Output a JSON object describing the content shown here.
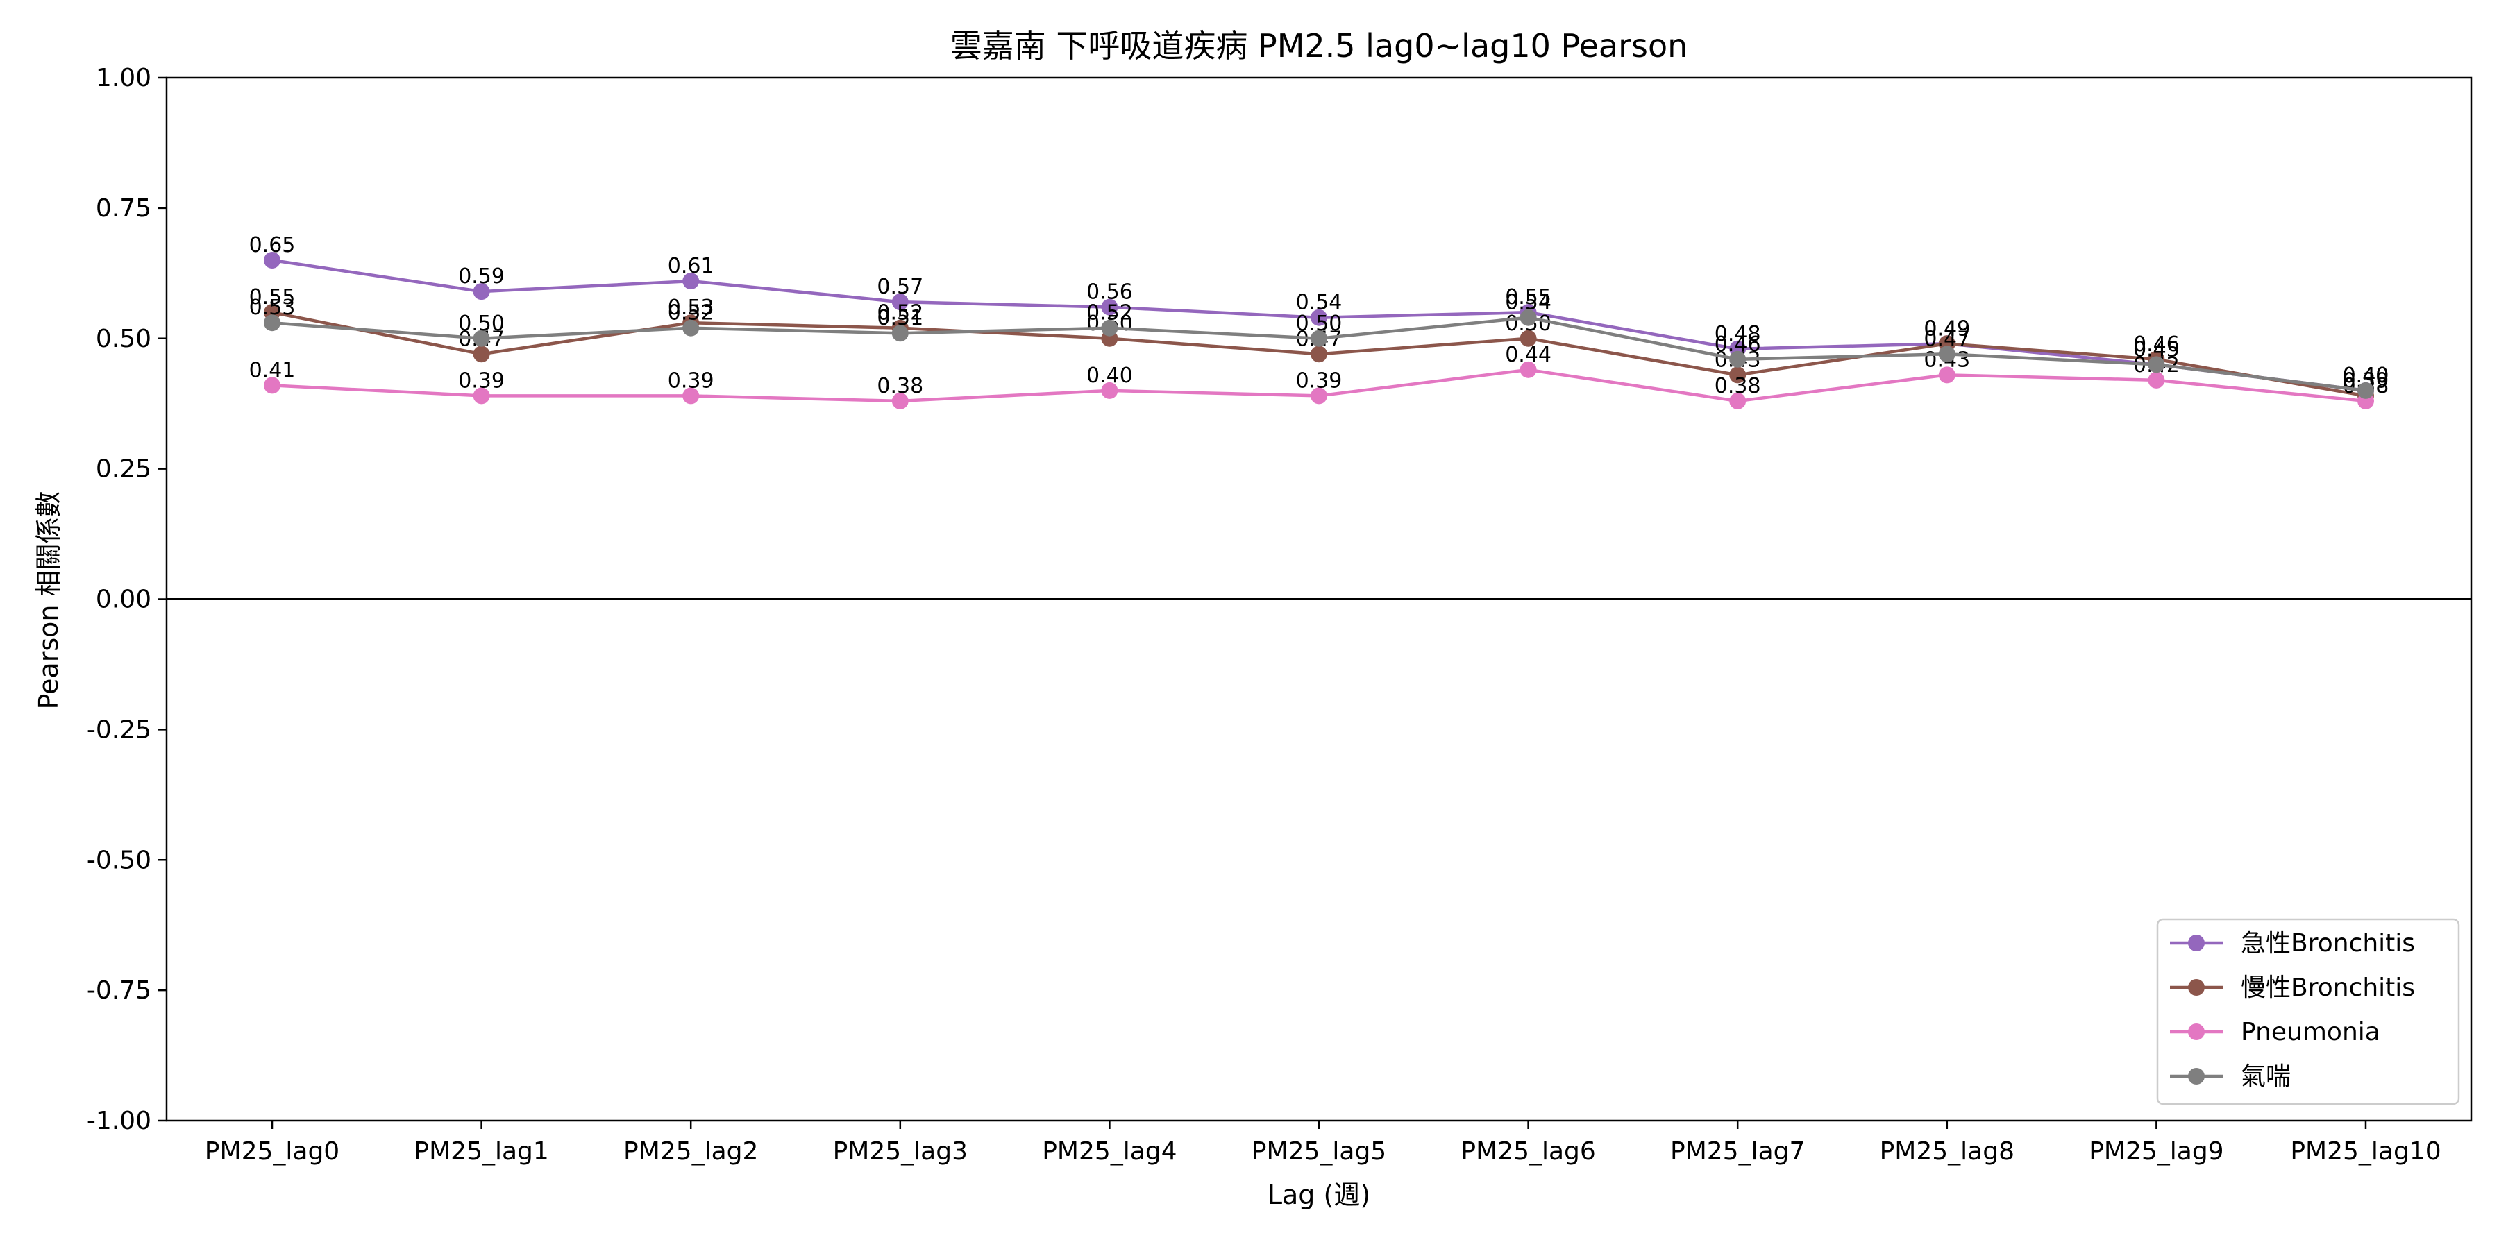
{
  "chart_data": {
    "type": "line",
    "title": "雲嘉南 下呼吸道疾病 PM2.5 lag0~lag10 Pearson",
    "xlabel": "Lag (週)",
    "ylabel": "Pearson 相關係數",
    "ylim": [
      -1.0,
      1.0
    ],
    "yticks": [
      "-1.00",
      "-0.75",
      "-0.50",
      "-0.25",
      "0.00",
      "0.25",
      "0.50",
      "0.75",
      "1.00"
    ],
    "ytick_values": [
      -1.0,
      -0.75,
      -0.5,
      -0.25,
      0.0,
      0.25,
      0.5,
      0.75,
      1.0
    ],
    "categories": [
      "PM25_lag0",
      "PM25_lag1",
      "PM25_lag2",
      "PM25_lag3",
      "PM25_lag4",
      "PM25_lag5",
      "PM25_lag6",
      "PM25_lag7",
      "PM25_lag8",
      "PM25_lag9",
      "PM25_lag10"
    ],
    "zero_line": true,
    "grid": false,
    "legend_position": "lower-right",
    "series": [
      {
        "name": "急性Bronchitis",
        "color": "#9467bd",
        "values": [
          0.65,
          0.59,
          0.61,
          0.57,
          0.56,
          0.54,
          0.55,
          0.48,
          0.49,
          0.45,
          0.4
        ],
        "labels": [
          "0.65",
          "0.59",
          "0.61",
          "0.57",
          "0.56",
          "0.54",
          "0.55",
          "0.48",
          "0.49",
          "0.45",
          "0.40"
        ]
      },
      {
        "name": "慢性Bronchitis",
        "color": "#8c564b",
        "values": [
          0.55,
          0.47,
          0.53,
          0.52,
          0.5,
          0.47,
          0.5,
          0.43,
          0.49,
          0.46,
          0.39
        ],
        "labels": [
          "0.55",
          "0.47",
          "0.53",
          "0.52",
          "0.50",
          "0.47",
          "0.50",
          "0.43",
          "0.49",
          "0.46",
          "0.39"
        ]
      },
      {
        "name": "Pneumonia",
        "color": "#e377c2",
        "values": [
          0.41,
          0.39,
          0.39,
          0.38,
          0.4,
          0.39,
          0.44,
          0.38,
          0.43,
          0.42,
          0.38
        ],
        "labels": [
          "0.41",
          "0.39",
          "0.39",
          "0.38",
          "0.40",
          "0.39",
          "0.44",
          "0.38",
          "0.43",
          "0.42",
          "0.38"
        ]
      },
      {
        "name": "氣喘",
        "color": "#7f7f7f",
        "values": [
          0.53,
          0.5,
          0.52,
          0.51,
          0.52,
          0.5,
          0.54,
          0.46,
          0.47,
          0.45,
          0.4
        ],
        "labels": [
          "0.53",
          "0.50",
          "0.52",
          "0.51",
          "0.52",
          "0.50",
          "0.54",
          "0.46",
          "0.47",
          "0.45",
          "0.40"
        ]
      }
    ]
  }
}
